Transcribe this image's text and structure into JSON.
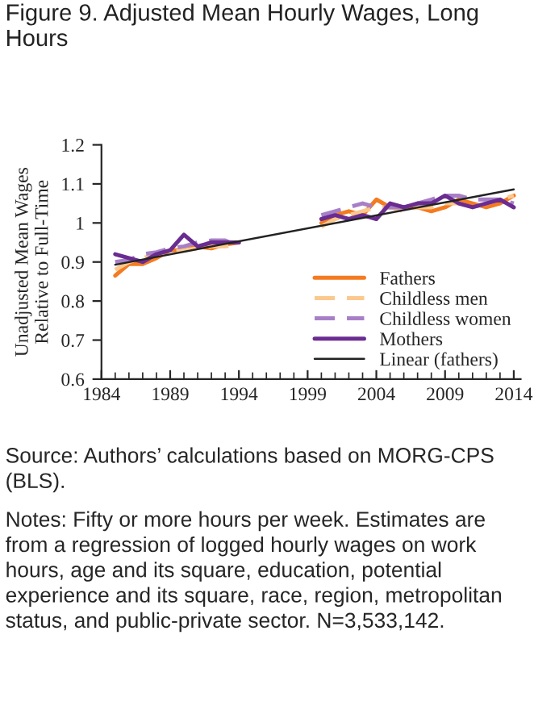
{
  "chart_data": {
    "type": "line",
    "title": "Figure 9. Adjusted Mean Hourly Wages, Long Hours",
    "ylabel": "Unadjusted Mean Wages\nRelative to Full-Time",
    "x": [
      1985,
      1986,
      1987,
      1988,
      1989,
      1990,
      1991,
      1992,
      1993,
      1994,
      1995,
      1996,
      1997,
      1998,
      1999,
      2000,
      2001,
      2002,
      2003,
      2004,
      2005,
      2006,
      2007,
      2008,
      2009,
      2010,
      2011,
      2012,
      2013,
      2014
    ],
    "series": [
      {
        "name": "Fathers",
        "color": "#f47b20",
        "line_style": "solid",
        "values": [
          0.865,
          0.895,
          0.895,
          0.91,
          0.93,
          0.93,
          0.94,
          0.935,
          0.945,
          0.95,
          null,
          null,
          null,
          null,
          null,
          1.0,
          1.02,
          1.03,
          1.02,
          1.06,
          1.04,
          1.04,
          1.04,
          1.03,
          1.04,
          1.06,
          1.05,
          1.04,
          1.05,
          1.07
        ]
      },
      {
        "name": "Childless men",
        "color": "#fbc88d",
        "line_style": "dashed",
        "values": [
          0.88,
          0.9,
          0.91,
          0.92,
          0.925,
          0.93,
          0.935,
          0.94,
          0.94,
          0.945,
          null,
          null,
          null,
          null,
          null,
          0.99,
          1.01,
          1.02,
          1.03,
          1.04,
          1.04,
          1.03,
          1.04,
          1.04,
          1.05,
          1.05,
          1.04,
          1.05,
          1.06,
          1.07
        ]
      },
      {
        "name": "Childless women",
        "color": "#a77fc7",
        "line_style": "dashed",
        "values": [
          0.9,
          0.905,
          0.92,
          0.925,
          0.935,
          0.94,
          0.95,
          0.955,
          0.955,
          0.94,
          null,
          null,
          null,
          null,
          null,
          1.02,
          1.03,
          1.04,
          1.05,
          1.04,
          1.04,
          1.04,
          1.05,
          1.06,
          1.07,
          1.07,
          1.06,
          1.06,
          1.06,
          1.05
        ]
      },
      {
        "name": "Mothers",
        "color": "#6a2c91",
        "line_style": "solid",
        "values": [
          0.92,
          0.91,
          0.9,
          0.92,
          0.93,
          0.97,
          0.94,
          0.95,
          0.95,
          0.95,
          null,
          null,
          null,
          null,
          null,
          1.01,
          1.02,
          1.01,
          1.02,
          1.01,
          1.05,
          1.04,
          1.05,
          1.05,
          1.07,
          1.05,
          1.04,
          1.05,
          1.06,
          1.04
        ]
      },
      {
        "name": "Linear (fathers)",
        "color": "#222222",
        "line_style": "solid",
        "x": [
          1985,
          2014
        ],
        "values": [
          0.893,
          1.086
        ]
      }
    ],
    "xlim": [
      1984,
      2014.5
    ],
    "xticks": [
      1984,
      1989,
      1994,
      1999,
      2004,
      2009,
      2014
    ],
    "ylim": [
      0.6,
      1.2
    ],
    "yticks": [
      0.6,
      0.7,
      0.8,
      0.9,
      {
        "value": 1.0,
        "label": "1"
      },
      1.1,
      1.2
    ],
    "grid": false,
    "legend": "bottom right",
    "marker": "none",
    "annotations": [
      "Source: Authors’ calculations based on MORG-CPS (BLS).",
      "Notes: Fifty or more hours per week. Estimates are from a regression of logged hourly wages on work hours, age and its square, education, potential experience and its square, race, region, metropolitan status, and public-private sector. N=3,533,142."
    ]
  }
}
